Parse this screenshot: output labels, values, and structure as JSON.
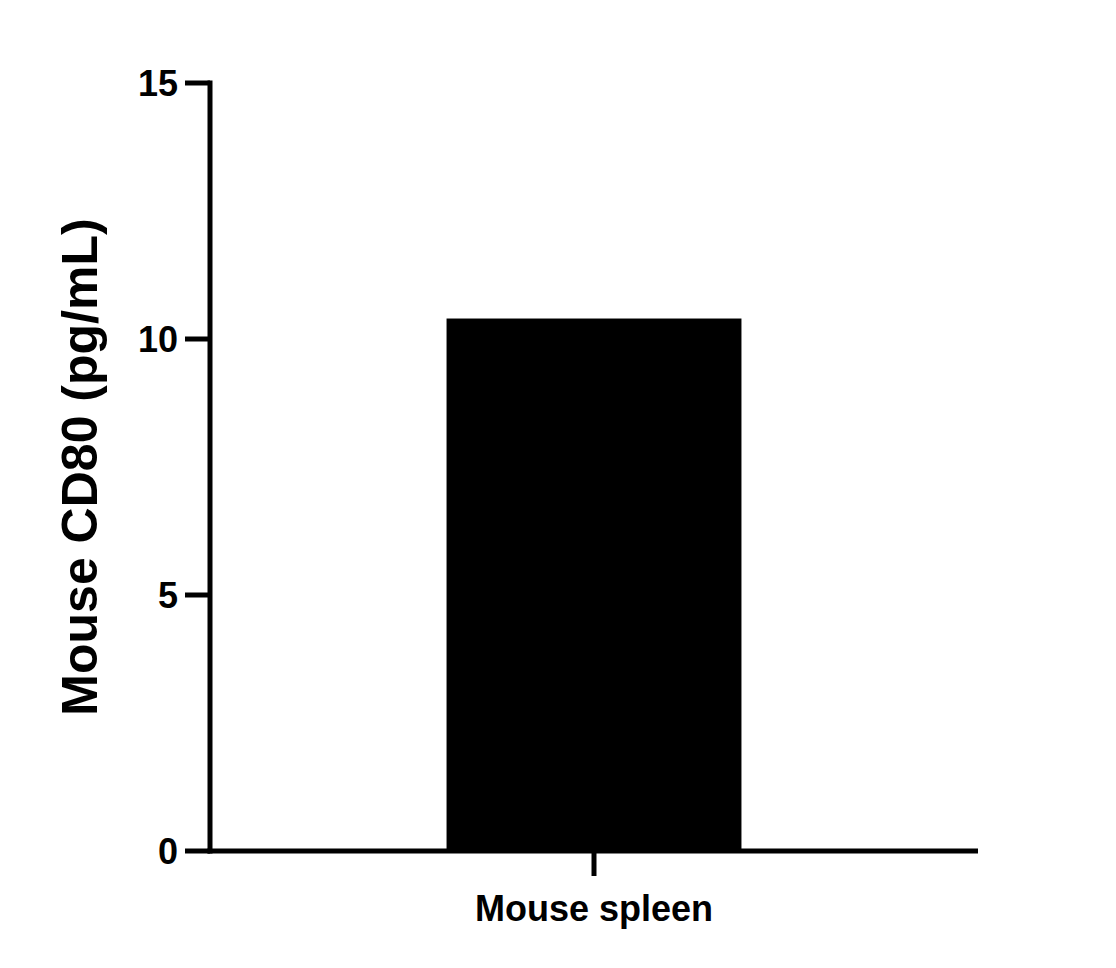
{
  "chart_data": {
    "type": "bar",
    "y_label": "Mouse CD80 (pg/mL)",
    "categories": [
      "Mouse spleen"
    ],
    "values": [
      10.4
    ],
    "color": "#000000",
    "ylim": [
      0,
      15
    ],
    "yticks": [
      0,
      5,
      10,
      15
    ],
    "grid": false
  }
}
